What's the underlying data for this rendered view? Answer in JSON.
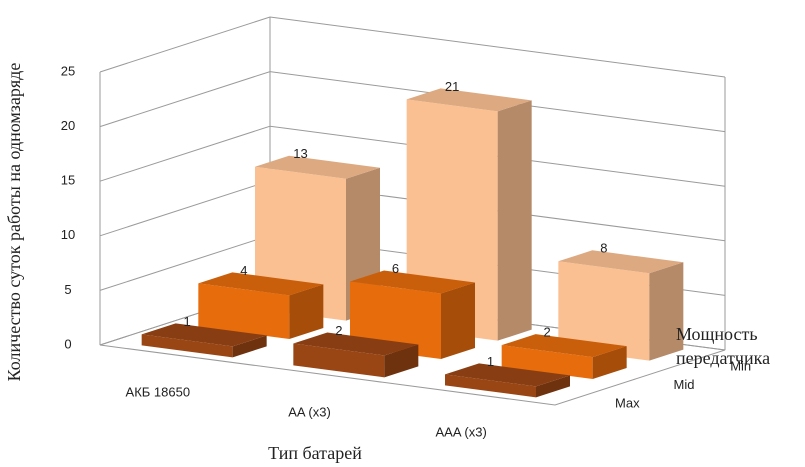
{
  "chart_data": {
    "type": "bar3d",
    "x_label": "Тип батарей",
    "y_label": "Количество суток работы на одномзаряде",
    "z_label": "Мощность передатчика",
    "categories": [
      "АКБ 18650",
      "AA (x3)",
      "AAA (x3)"
    ],
    "series": [
      {
        "name": "Max",
        "color": "#9a4614",
        "values": [
          1,
          2,
          1
        ]
      },
      {
        "name": "Mid",
        "color": "#e66c0c",
        "values": [
          4,
          6,
          2
        ]
      },
      {
        "name": "Min",
        "color": "#fbc092",
        "values": [
          13,
          21,
          8
        ]
      }
    ],
    "ylim": [
      0,
      25
    ],
    "yticks": [
      0,
      5,
      10,
      15,
      20,
      25
    ],
    "grid": true
  }
}
